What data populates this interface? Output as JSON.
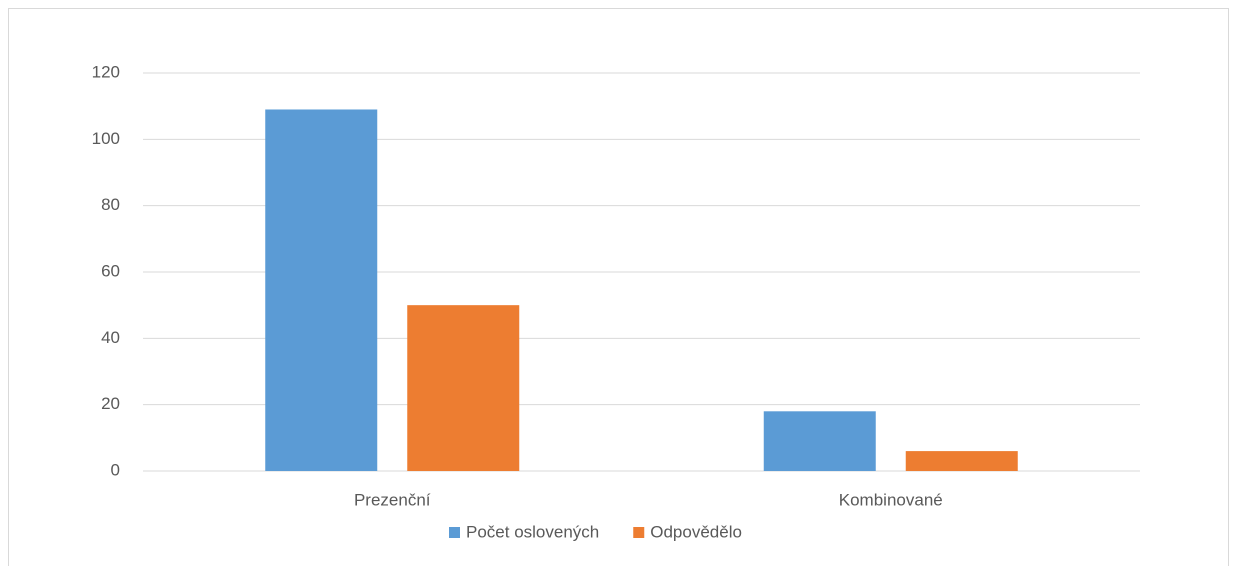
{
  "chart_data": {
    "type": "bar",
    "categories": [
      "Prezenční",
      "Kombinované"
    ],
    "series": [
      {
        "name": "Počet oslovených",
        "color": "#5b9bd5",
        "values": [
          109,
          18
        ]
      },
      {
        "name": "Odpovědělo",
        "color": "#ed7d31",
        "values": [
          50,
          6
        ]
      }
    ],
    "ylim": [
      0,
      120
    ],
    "yticks": [
      0,
      20,
      40,
      60,
      80,
      100,
      120
    ],
    "grid": true,
    "legend": "bottom"
  }
}
